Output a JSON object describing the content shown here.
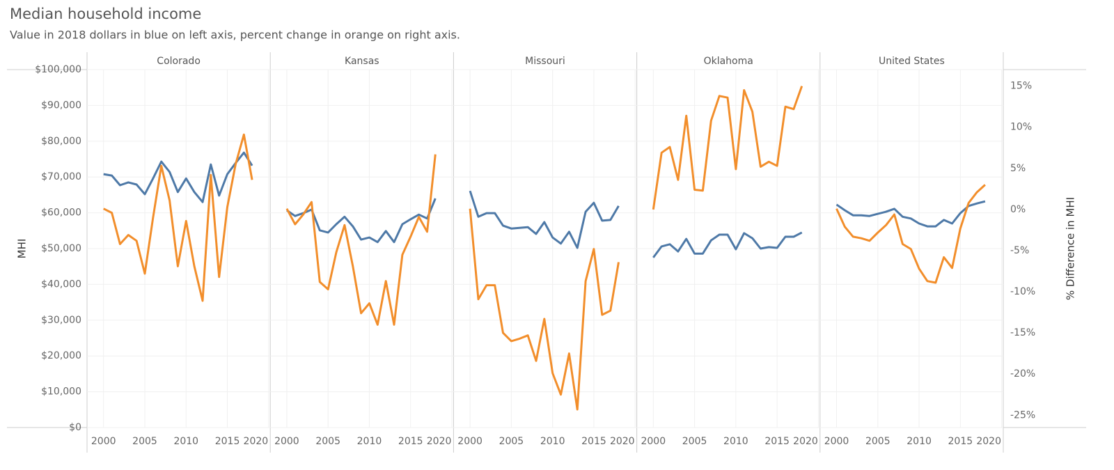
{
  "title": "Median household income",
  "subtitle": "Value in 2018 dollars in blue on left axis, percent change in orange on right axis.",
  "chart_data": [
    {
      "type": "line",
      "title": "Colorado",
      "x": [
        2000,
        2001,
        2002,
        2003,
        2004,
        2005,
        2006,
        2007,
        2008,
        2009,
        2010,
        2011,
        2012,
        2013,
        2014,
        2015,
        2016,
        2017,
        2018
      ],
      "series": [
        {
          "color": "#4e79a7",
          "values": [
            70800,
            70400,
            67700,
            68500,
            67900,
            65200,
            69600,
            74300,
            71400,
            65800,
            69600,
            65800,
            63000,
            73500,
            64800,
            70800,
            73900,
            76800,
            73200
          ]
        },
        {
          "color": "#f28e2b",
          "axis": "y2",
          "values": [
            0.1,
            -0.4,
            -4.2,
            -3.1,
            -3.8,
            -7.8,
            -1.0,
            5.3,
            1.1,
            -6.9,
            -1.4,
            -6.9,
            -11.1,
            4.2,
            -8.2,
            0.3,
            5.5,
            9.1,
            3.6
          ]
        }
      ],
      "xlim": [
        1998,
        2020.2
      ],
      "xticks": [
        2000,
        2005,
        2010,
        2015,
        2020
      ],
      "ylim": [
        0,
        100000
      ],
      "y2lim": [
        -26.5,
        17
      ],
      "ylabel": "MHI",
      "yticks": [
        {
          "value": 0,
          "label": "$0"
        },
        {
          "value": 10000,
          "label": "$10,000"
        },
        {
          "value": 20000,
          "label": "$20,000"
        },
        {
          "value": 30000,
          "label": "$30,000"
        },
        {
          "value": 40000,
          "label": "$40,000"
        },
        {
          "value": 50000,
          "label": "$50,000"
        },
        {
          "value": 60000,
          "label": "$60,000"
        },
        {
          "value": 70000,
          "label": "$70,000"
        },
        {
          "value": 80000,
          "label": "$80,000"
        },
        {
          "value": 90000,
          "label": "$90,000"
        },
        {
          "value": 100000,
          "label": "$100,000"
        }
      ]
    },
    {
      "type": "line",
      "title": "Kansas",
      "x": [
        2000,
        2001,
        2002,
        2003,
        2004,
        2005,
        2006,
        2007,
        2008,
        2009,
        2010,
        2011,
        2012,
        2013,
        2014,
        2015,
        2016,
        2017,
        2018
      ],
      "series": [
        {
          "color": "#4e79a7",
          "values": [
            60700,
            59100,
            59900,
            60900,
            55100,
            54500,
            56800,
            58900,
            56200,
            52500,
            53100,
            51800,
            54900,
            51800,
            56800,
            58200,
            59500,
            58400,
            64000
          ]
        },
        {
          "color": "#f28e2b",
          "axis": "y2",
          "values": [
            0.1,
            -1.8,
            -0.6,
            0.9,
            -8.8,
            -9.7,
            -5.2,
            -1.9,
            -6.9,
            -12.6,
            -11.4,
            -14.0,
            -8.7,
            -14.0,
            -5.5,
            -3.3,
            -0.9,
            -2.7,
            6.7
          ]
        }
      ],
      "xlim": [
        1998,
        2020.2
      ],
      "xticks": [
        2000,
        2005,
        2010,
        2015,
        2020
      ],
      "ylim": [
        0,
        100000
      ],
      "y2lim": [
        -26.5,
        17
      ]
    },
    {
      "type": "line",
      "title": "Missouri",
      "x": [
        2000,
        2001,
        2002,
        2003,
        2004,
        2005,
        2006,
        2007,
        2008,
        2009,
        2010,
        2011,
        2012,
        2013,
        2014,
        2015,
        2016,
        2017,
        2018
      ],
      "series": [
        {
          "color": "#4e79a7",
          "values": [
            66100,
            58900,
            59900,
            59900,
            56400,
            55600,
            55800,
            56000,
            54100,
            57400,
            53100,
            51400,
            54700,
            50200,
            60300,
            62800,
            57800,
            58000,
            61900
          ]
        },
        {
          "color": "#f28e2b",
          "axis": "y2",
          "values": [
            0.1,
            -10.9,
            -9.2,
            -9.2,
            -15.0,
            -16.0,
            -15.7,
            -15.3,
            -18.4,
            -13.3,
            -19.9,
            -22.5,
            -17.5,
            -24.3,
            -8.7,
            -4.8,
            -12.8,
            -12.3,
            -6.4
          ]
        }
      ],
      "xlim": [
        1998,
        2020.2
      ],
      "xticks": [
        2000,
        2005,
        2010,
        2015,
        2020
      ],
      "ylim": [
        0,
        100000
      ],
      "y2lim": [
        -26.5,
        17
      ]
    },
    {
      "type": "line",
      "title": "Oklahoma",
      "x": [
        2000,
        2001,
        2002,
        2003,
        2004,
        2005,
        2006,
        2007,
        2008,
        2009,
        2010,
        2011,
        2012,
        2013,
        2014,
        2015,
        2016,
        2017,
        2018
      ],
      "series": [
        {
          "color": "#4e79a7",
          "values": [
            47500,
            50600,
            51200,
            49200,
            52700,
            48600,
            48600,
            52300,
            53900,
            53900,
            49800,
            54300,
            52900,
            50000,
            50400,
            50200,
            53300,
            53300,
            54500
          ]
        },
        {
          "color": "#f28e2b",
          "axis": "y2",
          "values": [
            0.0,
            6.9,
            7.6,
            3.6,
            11.4,
            2.4,
            2.3,
            10.8,
            13.8,
            13.6,
            4.9,
            14.5,
            11.9,
            5.2,
            5.8,
            5.3,
            12.5,
            12.2,
            15.0
          ]
        }
      ],
      "xlim": [
        1998,
        2020.2
      ],
      "xticks": [
        2000,
        2005,
        2010,
        2015,
        2020
      ],
      "ylim": [
        0,
        100000
      ],
      "y2lim": [
        -26.5,
        17
      ]
    },
    {
      "type": "line",
      "title": "United States",
      "x": [
        2000,
        2001,
        2002,
        2003,
        2004,
        2005,
        2006,
        2007,
        2008,
        2009,
        2010,
        2011,
        2012,
        2013,
        2014,
        2015,
        2016,
        2017,
        2018
      ],
      "series": [
        {
          "color": "#4e79a7",
          "values": [
            62300,
            60700,
            59300,
            59300,
            59100,
            59700,
            60300,
            61100,
            58900,
            58400,
            57000,
            56200,
            56200,
            58000,
            57000,
            59900,
            61900,
            62600,
            63200
          ]
        },
        {
          "color": "#f28e2b",
          "axis": "y2",
          "values": [
            0.1,
            -2.1,
            -3.3,
            -3.5,
            -3.8,
            -2.8,
            -1.9,
            -0.6,
            -4.2,
            -4.8,
            -7.2,
            -8.7,
            -8.9,
            -5.8,
            -7.1,
            -2.3,
            0.8,
            2.1,
            3.0
          ]
        }
      ],
      "xlim": [
        1998,
        2020.2
      ],
      "xticks": [
        2000,
        2005,
        2010,
        2015,
        2020
      ],
      "ylim": [
        0,
        100000
      ],
      "y2lim": [
        -26.5,
        17
      ],
      "y2label": "% Difference in MHI",
      "y2ticks": [
        {
          "value": -25,
          "label": "-25%"
        },
        {
          "value": -20,
          "label": "-20%"
        },
        {
          "value": -15,
          "label": "-15%"
        },
        {
          "value": -10,
          "label": "-10%"
        },
        {
          "value": -5,
          "label": "-5%"
        },
        {
          "value": 0,
          "label": "0%"
        },
        {
          "value": 5,
          "label": "5%"
        },
        {
          "value": 10,
          "label": "10%"
        },
        {
          "value": 15,
          "label": "15%"
        }
      ]
    }
  ]
}
